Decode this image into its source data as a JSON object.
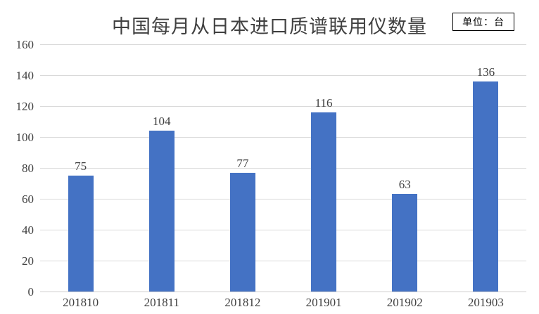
{
  "header": {
    "unit_label": "单位：台"
  },
  "chart_data": {
    "type": "bar",
    "title": "中国每月从日本进口质谱联用仪数量",
    "categories": [
      "201810",
      "201811",
      "201812",
      "201901",
      "201902",
      "201903"
    ],
    "values": [
      75,
      104,
      77,
      116,
      63,
      136
    ],
    "data_labels": [
      75,
      104,
      77,
      116,
      63,
      136
    ],
    "xlabel": "",
    "ylabel": "",
    "ylim": [
      0,
      160
    ],
    "yticks": [
      0,
      20,
      40,
      60,
      80,
      100,
      120,
      140,
      160
    ],
    "grid": "horizontal",
    "legend": "none"
  },
  "colors": {
    "bar": "#4472c4",
    "gridline": "#d9d9d9",
    "axis_text": "#404040",
    "title_text": "#404040",
    "unit_box_border": "#000000",
    "background": "#ffffff"
  }
}
